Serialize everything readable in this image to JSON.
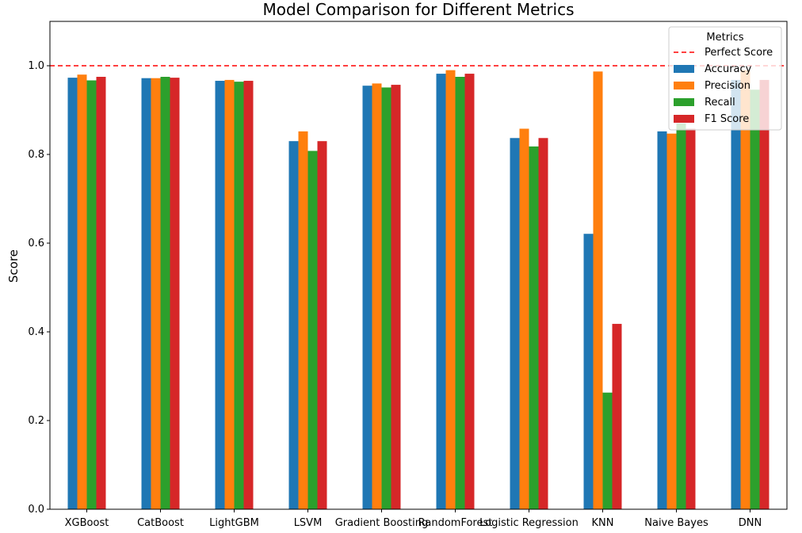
{
  "chart_data": {
    "type": "bar",
    "title": "Model Comparison for Different Metrics",
    "xlabel": "",
    "ylabel": "Score",
    "ylim": [
      0,
      1.1
    ],
    "yticks": [
      "0.0",
      "0.2",
      "0.4",
      "0.6",
      "0.8",
      "1.0"
    ],
    "categories": [
      "XGBoost",
      "CatBoost",
      "LightGBM",
      "LSVM",
      "Gradient Boosting",
      "RandomForest",
      "Logistic Regression",
      "KNN",
      "Naive Bayes",
      "DNN"
    ],
    "series": [
      {
        "name": "Accuracy",
        "color": "#1f77b4",
        "values": [
          0.973,
          0.972,
          0.966,
          0.83,
          0.955,
          0.982,
          0.837,
          0.621,
          0.852,
          0.968
        ]
      },
      {
        "name": "Precision",
        "color": "#ff7f0e",
        "values": [
          0.98,
          0.972,
          0.968,
          0.852,
          0.96,
          0.99,
          0.858,
          0.987,
          0.847,
          0.99
        ]
      },
      {
        "name": "Recall",
        "color": "#2ca02c",
        "values": [
          0.967,
          0.975,
          0.964,
          0.808,
          0.951,
          0.975,
          0.818,
          0.263,
          0.87,
          0.946
        ]
      },
      {
        "name": "F1 Score",
        "color": "#d62728",
        "values": [
          0.975,
          0.973,
          0.966,
          0.83,
          0.957,
          0.982,
          0.837,
          0.418,
          0.858,
          0.968
        ]
      }
    ],
    "reference_line": {
      "label": "Perfect Score",
      "value": 1.0,
      "color": "#ff0000",
      "style": "dashed"
    },
    "legend": {
      "title": "Metrics",
      "placement": "top-right"
    },
    "grid": false
  }
}
